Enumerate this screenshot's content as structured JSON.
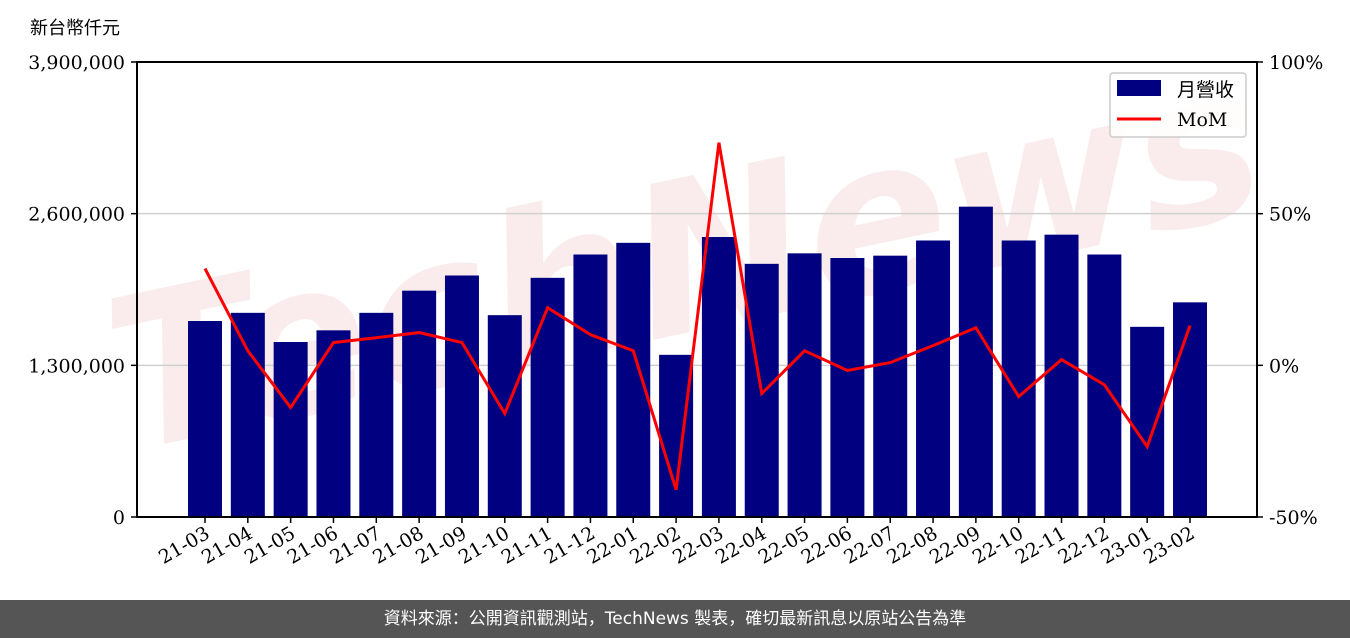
{
  "chart_data": {
    "type": "bar+line",
    "y_left_label": "新台幣仟元",
    "y_left_ticks": [
      "0",
      "1,300,000",
      "2,600,000",
      "3,900,000"
    ],
    "y_left_lim": [
      0,
      3900000
    ],
    "y_right_ticks": [
      "-50%",
      "0%",
      "50%",
      "100%"
    ],
    "y_right_lim": [
      -50,
      100
    ],
    "grid": "horizontal",
    "legend_placement": "top-right",
    "categories": [
      "21-03",
      "21-04",
      "21-05",
      "21-06",
      "21-07",
      "21-08",
      "21-09",
      "21-10",
      "21-11",
      "21-12",
      "22-01",
      "22-02",
      "22-03",
      "22-04",
      "22-05",
      "22-06",
      "22-07",
      "22-08",
      "22-09",
      "22-10",
      "22-11",
      "22-12",
      "23-01",
      "23-02"
    ],
    "series": [
      {
        "name": "月營收",
        "type": "bar",
        "color": "#000080",
        "axis": "left",
        "values": [
          1680000,
          1750000,
          1500000,
          1600000,
          1750000,
          1940000,
          2070000,
          1730000,
          2050000,
          2250000,
          2350000,
          1390000,
          2400000,
          2170000,
          2260000,
          2220000,
          2240000,
          2370000,
          2660000,
          2370000,
          2420000,
          2250000,
          1630000,
          1840000
        ]
      },
      {
        "name": "MoM",
        "type": "line",
        "color": "#ff0000",
        "axis": "right",
        "values": [
          31.9,
          4.8,
          -13.9,
          7.5,
          9.1,
          10.8,
          7.5,
          -15.9,
          19.0,
          10.1,
          4.8,
          -41.0,
          73.4,
          -9.3,
          4.8,
          -1.7,
          0.9,
          6.5,
          12.4,
          -10.3,
          1.9,
          -6.4,
          -26.8,
          13.1
        ]
      }
    ]
  },
  "watermark": "TechNews",
  "footer": "資料來源：公開資訊觀測站，TechNews 製表，確切最新訊息以原站公告為準"
}
